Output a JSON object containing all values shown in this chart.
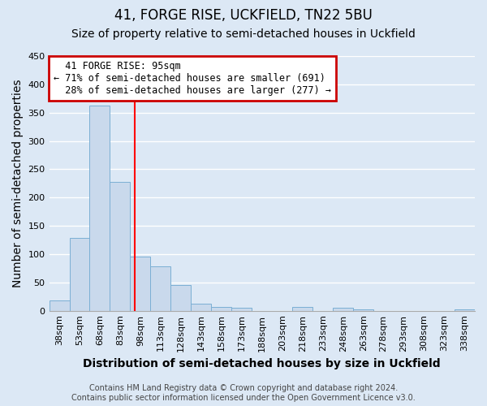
{
  "title": "41, FORGE RISE, UCKFIELD, TN22 5BU",
  "subtitle": "Size of property relative to semi-detached houses in Uckfield",
  "xlabel": "Distribution of semi-detached houses by size in Uckfield",
  "ylabel": "Number of semi-detached properties",
  "bar_labels": [
    "38sqm",
    "53sqm",
    "68sqm",
    "83sqm",
    "98sqm",
    "113sqm",
    "128sqm",
    "143sqm",
    "158sqm",
    "173sqm",
    "188sqm",
    "203sqm",
    "218sqm",
    "233sqm",
    "248sqm",
    "263sqm",
    "278sqm",
    "293sqm",
    "308sqm",
    "323sqm",
    "338sqm"
  ],
  "bar_values": [
    18,
    128,
    363,
    228,
    95,
    79,
    46,
    12,
    7,
    5,
    0,
    0,
    6,
    0,
    5,
    2,
    0,
    0,
    0,
    0,
    3
  ],
  "bar_color": "#c9d9ec",
  "bar_edge_color": "#7bafd4",
  "ylim": [
    0,
    450
  ],
  "yticks": [
    0,
    50,
    100,
    150,
    200,
    250,
    300,
    350,
    400,
    450
  ],
  "property_label": "41 FORGE RISE: 95sqm",
  "pct_smaller": 71,
  "count_smaller": 691,
  "pct_larger": 28,
  "count_larger": 277,
  "vline_x_index": 3.73,
  "annotation_box_color": "#ffffff",
  "annotation_box_edge": "#cc0000",
  "footer_line1": "Contains HM Land Registry data © Crown copyright and database right 2024.",
  "footer_line2": "Contains public sector information licensed under the Open Government Licence v3.0.",
  "background_color": "#dce8f5",
  "plot_background": "#dce8f5",
  "grid_color": "#ffffff",
  "title_fontsize": 12,
  "subtitle_fontsize": 10,
  "axis_label_fontsize": 10,
  "tick_fontsize": 8,
  "footer_fontsize": 7
}
